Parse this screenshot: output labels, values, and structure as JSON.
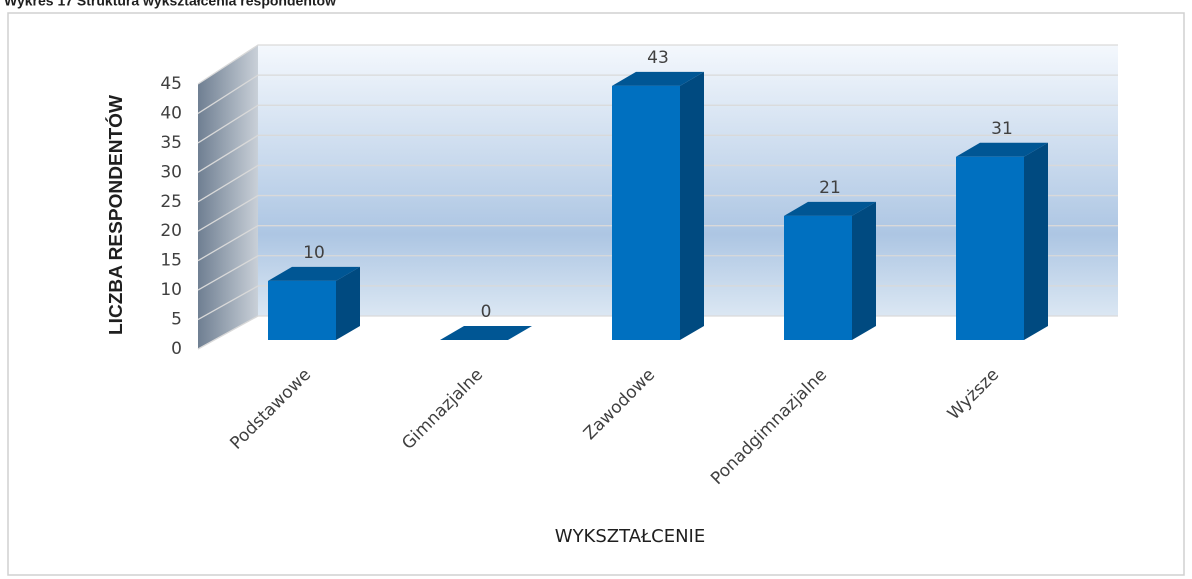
{
  "chart_data": {
    "type": "bar3d",
    "title": "Wykres 17 Struktura wykształcenia respondentów",
    "x_label": "WYKSZTAŁCENIE",
    "y_label": "LICZBA RESPONDENTÓW",
    "categories": [
      "Podstawowe",
      "Gimnazjalne",
      "Zawodowe",
      "Ponadgimnazjalne",
      "Wyższe"
    ],
    "values": [
      10,
      0,
      43,
      21,
      31
    ],
    "color": "#0070c0",
    "ylim": [
      0,
      45
    ],
    "yticks": [
      0,
      5,
      10,
      15,
      20,
      25,
      30,
      35,
      40,
      45
    ],
    "grid": true
  }
}
